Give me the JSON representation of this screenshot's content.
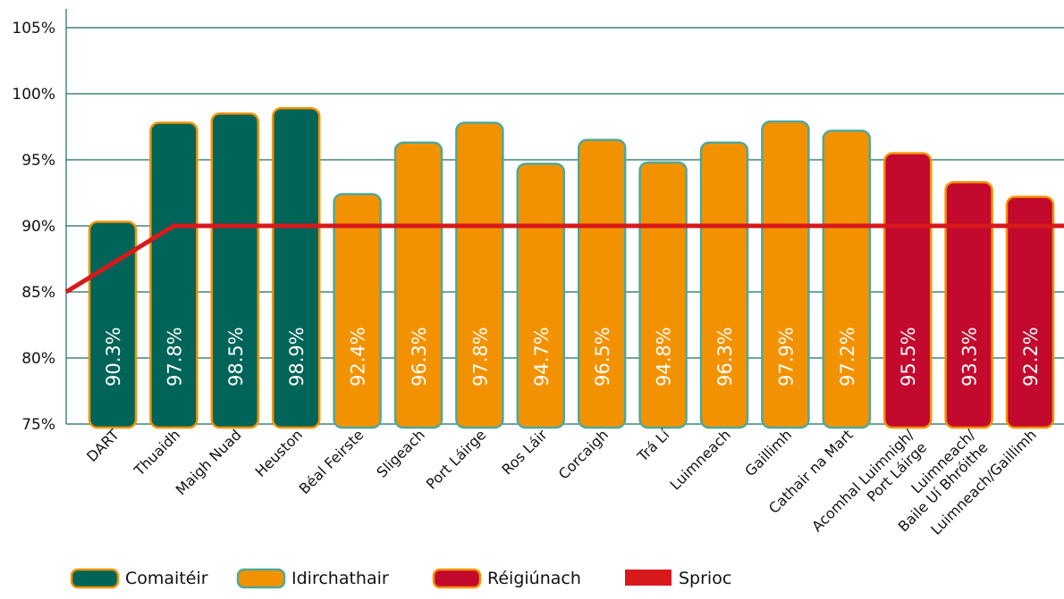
{
  "colors": {
    "comaiteir": "#006458",
    "idirchathair": "#F39200",
    "reigiunach": "#C3092D",
    "target": "#D7191C",
    "grid": "#1e6b5e",
    "border_orange": "#F39200",
    "border_teal": "#4FA899"
  },
  "chart_data": {
    "type": "bar",
    "title": "",
    "xlabel": "",
    "ylabel": "",
    "ylim": [
      75,
      105
    ],
    "yticks": [
      "75%",
      "80%",
      "85%",
      "90%",
      "95%",
      "100%",
      "105%"
    ],
    "grid": true,
    "legend_position": "bottom",
    "categories": [
      "DART",
      "Thuaidh",
      "Maigh Nuad",
      "Heuston",
      "Béal Feirste",
      "Sligeach",
      "Port Láirge",
      "Ros Láir",
      "Corcaigh",
      "Trá Lí",
      "Luimneach",
      "Gaillimh",
      "Cathair na Mart",
      "Acomhal Luimnigh/\nPort Láirge",
      "Luimneach/\nBaile Uí Bhróithe",
      "Luimneach/Gaillimh"
    ],
    "values": [
      90.3,
      97.8,
      98.5,
      98.9,
      92.4,
      96.3,
      97.8,
      94.7,
      96.5,
      94.8,
      96.3,
      97.9,
      97.2,
      95.5,
      93.3,
      92.2
    ],
    "data_labels": [
      "90.3%",
      "97.8%",
      "98.5%",
      "98.9%",
      "92.4%",
      "96.3%",
      "97.8%",
      "94.7%",
      "96.5%",
      "94.8%",
      "96.3%",
      "97.9%",
      "97.2%",
      "95.5%",
      "93.3%",
      "92.2%"
    ],
    "groups": [
      "comaiteir",
      "comaiteir",
      "comaiteir",
      "comaiteir",
      "idirchathair",
      "idirchathair",
      "idirchathair",
      "idirchathair",
      "idirchathair",
      "idirchathair",
      "idirchathair",
      "idirchathair",
      "idirchathair",
      "reigiunach",
      "reigiunach",
      "reigiunach"
    ],
    "target": {
      "name": "Sprioc",
      "x_start_value": 85,
      "values": [
        90,
        90,
        90,
        90,
        90,
        90,
        90,
        90,
        90,
        90,
        90,
        90,
        90,
        90,
        90,
        90
      ],
      "ramp": {
        "start": 85,
        "reach_index": 1,
        "reach_value": 90
      }
    },
    "legend": [
      {
        "key": "comaiteir",
        "label": "Comaitéir"
      },
      {
        "key": "idirchathair",
        "label": "Idirchathair"
      },
      {
        "key": "reigiunach",
        "label": "Réigiúnach"
      },
      {
        "key": "target",
        "label": "Sprioc"
      }
    ]
  }
}
